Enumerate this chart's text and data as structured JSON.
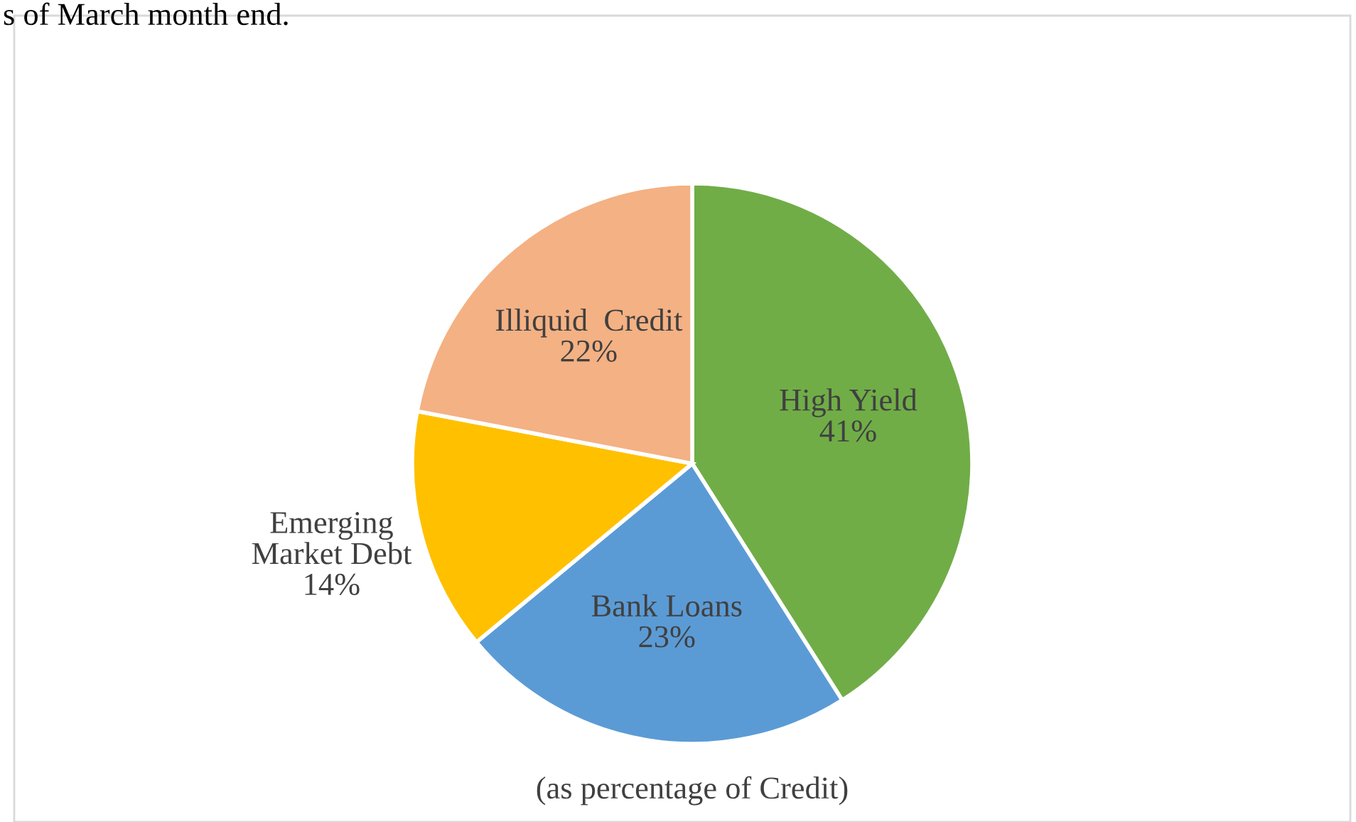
{
  "chart_data": {
    "type": "pie",
    "categories": [
      "High Yield",
      "Bank Loans",
      "Emerging\nMarket Debt",
      "Illiquid  Credit"
    ],
    "values": [
      41,
      23,
      14,
      22
    ],
    "colors": [
      "#70ad47",
      "#5b9bd5",
      "#ffc000",
      "#f4b183"
    ],
    "value_labels": [
      "41%",
      "23%",
      "14%",
      "22%"
    ],
    "annotations": [
      "s of March month end.",
      "(as percentage of Credit)"
    ],
    "legend": false
  }
}
